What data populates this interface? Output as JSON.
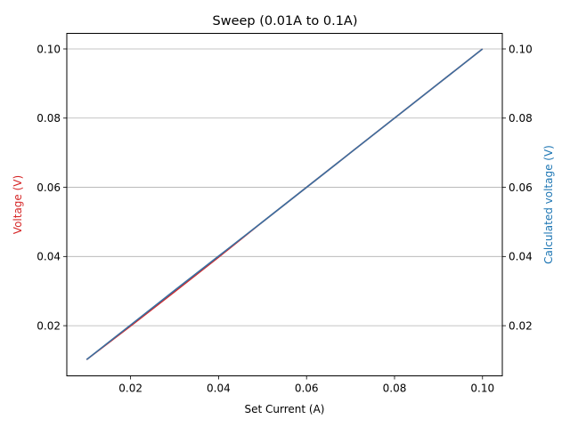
{
  "chart_data": {
    "type": "line",
    "title": "Sweep (0.01A to 0.1A)",
    "xlabel": "Set Current (A)",
    "ylabel": "Voltage (V)",
    "ylabel_right": "Calculated voltage (V)",
    "xlim": [
      0.0055,
      0.1045
    ],
    "ylim": [
      0.0055,
      0.1045
    ],
    "ylim_right": [
      0.0055,
      0.1045
    ],
    "x_ticks": [
      "0.02",
      "0.04",
      "0.06",
      "0.08",
      "0.10"
    ],
    "y_ticks": [
      "0.02",
      "0.04",
      "0.06",
      "0.08",
      "0.10"
    ],
    "y_ticks_right": [
      "0.02",
      "0.04",
      "0.06",
      "0.08",
      "0.10"
    ],
    "grid": "horizontal",
    "colors": {
      "left": "#d62728",
      "right": "#1f77b4",
      "right_line": "#3a6fa0"
    },
    "series": [
      {
        "axis": "left",
        "x": [
          0.01,
          0.02,
          0.03,
          0.04,
          0.05,
          0.06,
          0.07,
          0.08,
          0.09,
          0.1
        ],
        "values": [
          0.0102,
          0.0199,
          0.0298,
          0.0398,
          0.05,
          0.06,
          0.07,
          0.08,
          0.09,
          0.1
        ]
      },
      {
        "axis": "right",
        "x": [
          0.01,
          0.02,
          0.03,
          0.04,
          0.05,
          0.06,
          0.07,
          0.08,
          0.09,
          0.1
        ],
        "values": [
          0.0102,
          0.0202,
          0.0302,
          0.0401,
          0.05,
          0.06,
          0.07,
          0.08,
          0.09,
          0.1
        ]
      }
    ]
  }
}
